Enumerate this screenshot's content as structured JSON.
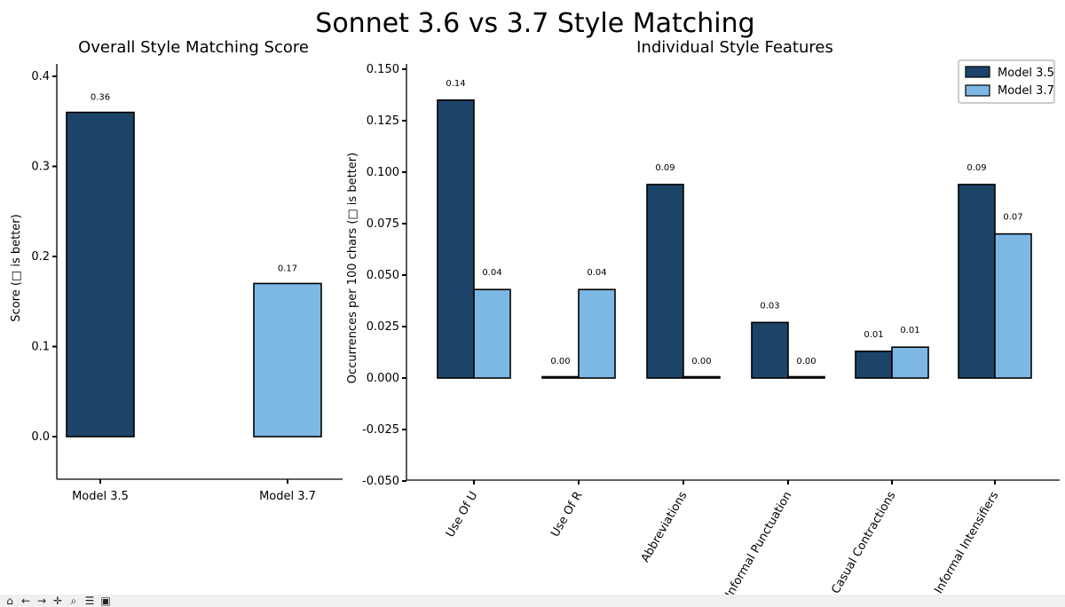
{
  "figure": {
    "title": "Sonnet 3.6 vs 3.7 Style Matching"
  },
  "colors": {
    "model_35": "#1c4468",
    "model_37": "#7db8e5"
  },
  "chart_data": [
    {
      "type": "bar",
      "title": "Overall Style Matching Score",
      "ylabel": "Score (□ is better)",
      "categories": [
        "Model 3.5",
        "Model 3.7"
      ],
      "values": [
        0.36,
        0.17
      ],
      "value_labels": [
        "0.36",
        "0.17"
      ],
      "ylim": [
        -0.05,
        0.43
      ],
      "yticks": [
        0.0,
        0.1,
        0.2,
        0.3,
        0.4
      ],
      "ytick_labels": [
        "0.0",
        "0.1",
        "0.2",
        "0.3",
        "0.4"
      ],
      "grid": false
    },
    {
      "type": "bar",
      "title": "Individual Style Features",
      "ylabel": "Occurrences per 100 chars (□ is better)",
      "categories": [
        "Use Of U",
        "Use Of R",
        "Abbreviations",
        "Informal Punctuation",
        "Casual Contractions",
        "Informal Intensifiers"
      ],
      "series": [
        {
          "name": "Model 3.5",
          "values": [
            0.135,
            0.0,
            0.094,
            0.027,
            0.013,
            0.094
          ],
          "value_labels": [
            "0.14",
            "0.00",
            "0.09",
            "0.03",
            "0.01",
            "0.09"
          ]
        },
        {
          "name": "Model 3.7",
          "values": [
            0.043,
            0.043,
            0.0,
            0.0,
            0.015,
            0.07
          ],
          "value_labels": [
            "0.04",
            "0.04",
            "0.00",
            "0.00",
            "0.01",
            "0.07"
          ]
        }
      ],
      "ylim": [
        -0.051,
        0.155
      ],
      "yticks": [
        -0.05,
        -0.025,
        0.0,
        0.025,
        0.05,
        0.075,
        0.1,
        0.125,
        0.15
      ],
      "ytick_labels": [
        "-0.050",
        "-0.025",
        "0.000",
        "0.025",
        "0.050",
        "0.075",
        "0.100",
        "0.125",
        "0.150"
      ],
      "legend": "top-right",
      "grid": false
    }
  ],
  "toolbar": {
    "buttons": [
      {
        "name": "home-icon",
        "glyph": "⌂"
      },
      {
        "name": "back-icon",
        "glyph": "←"
      },
      {
        "name": "forward-icon",
        "glyph": "→"
      },
      {
        "name": "pan-icon",
        "glyph": "✛"
      },
      {
        "name": "zoom-icon",
        "glyph": "⌕"
      },
      {
        "name": "configure-icon",
        "glyph": "☰"
      },
      {
        "name": "save-icon",
        "glyph": "▣"
      }
    ]
  }
}
